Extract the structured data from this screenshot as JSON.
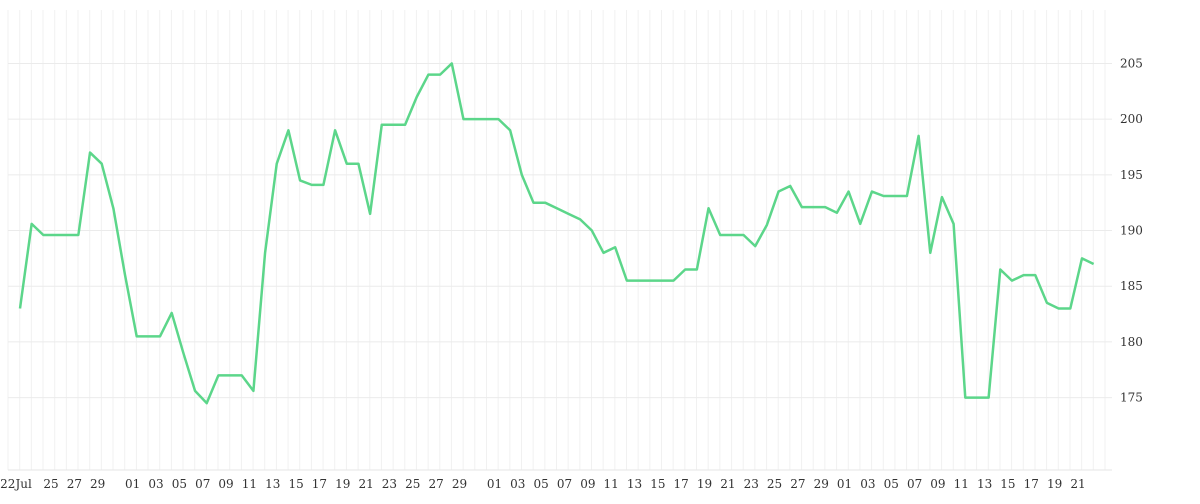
{
  "chart_data": {
    "type": "line",
    "categories": [
      "22Jul",
      null,
      null,
      "25",
      null,
      "27",
      null,
      "29",
      null,
      null,
      "01",
      null,
      "03",
      null,
      "05",
      null,
      "07",
      null,
      "09",
      null,
      "11",
      null,
      "13",
      null,
      "15",
      null,
      "17",
      null,
      "19",
      null,
      "21",
      null,
      "23",
      null,
      "25",
      null,
      "27",
      null,
      "29",
      null,
      null,
      "01",
      null,
      "03",
      null,
      "05",
      null,
      "07",
      null,
      "09",
      null,
      "11",
      null,
      "13",
      null,
      "15",
      null,
      "17",
      null,
      "19",
      null,
      "21",
      null,
      "23",
      null,
      "25",
      null,
      "27",
      null,
      "29",
      null,
      "01",
      null,
      "03",
      null,
      "05",
      null,
      "07",
      null,
      "09",
      null,
      "11",
      null,
      "13",
      null,
      "15",
      null,
      "17",
      null,
      "19",
      null,
      "21",
      null
    ],
    "series": [
      {
        "color": "#5cd68a",
        "values": [
          183,
          190.6,
          189.6,
          189.6,
          189.6,
          189.6,
          197,
          196,
          192,
          186,
          180.5,
          180.5,
          180.5,
          182.6,
          179,
          175.6,
          174.5,
          177,
          177,
          177,
          175.6,
          188,
          196,
          199,
          194.5,
          194.1,
          194.1,
          199,
          196,
          196,
          191.5,
          199.5,
          199.5,
          199.5,
          202,
          204,
          204,
          205,
          200,
          200,
          200,
          200,
          199,
          195,
          192.5,
          192.5,
          192,
          191.5,
          191,
          190,
          188,
          188.5,
          185.5,
          185.5,
          185.5,
          185.5,
          185.5,
          186.5,
          186.5,
          192,
          189.6,
          189.6,
          189.6,
          188.6,
          190.5,
          193.5,
          194,
          192.1,
          192.1,
          192.1,
          191.6,
          193.5,
          190.6,
          193.5,
          193.1,
          193.1,
          193.1,
          198.5,
          188,
          193,
          190.6,
          175,
          175,
          175,
          186.5,
          185.5,
          186,
          186,
          183.5,
          183,
          183,
          187.5,
          187
        ]
      }
    ],
    "ylim": [
      168.5,
      209.8
    ],
    "yticks": [
      175,
      180,
      185,
      190,
      195,
      200,
      205
    ],
    "grid": true
  }
}
